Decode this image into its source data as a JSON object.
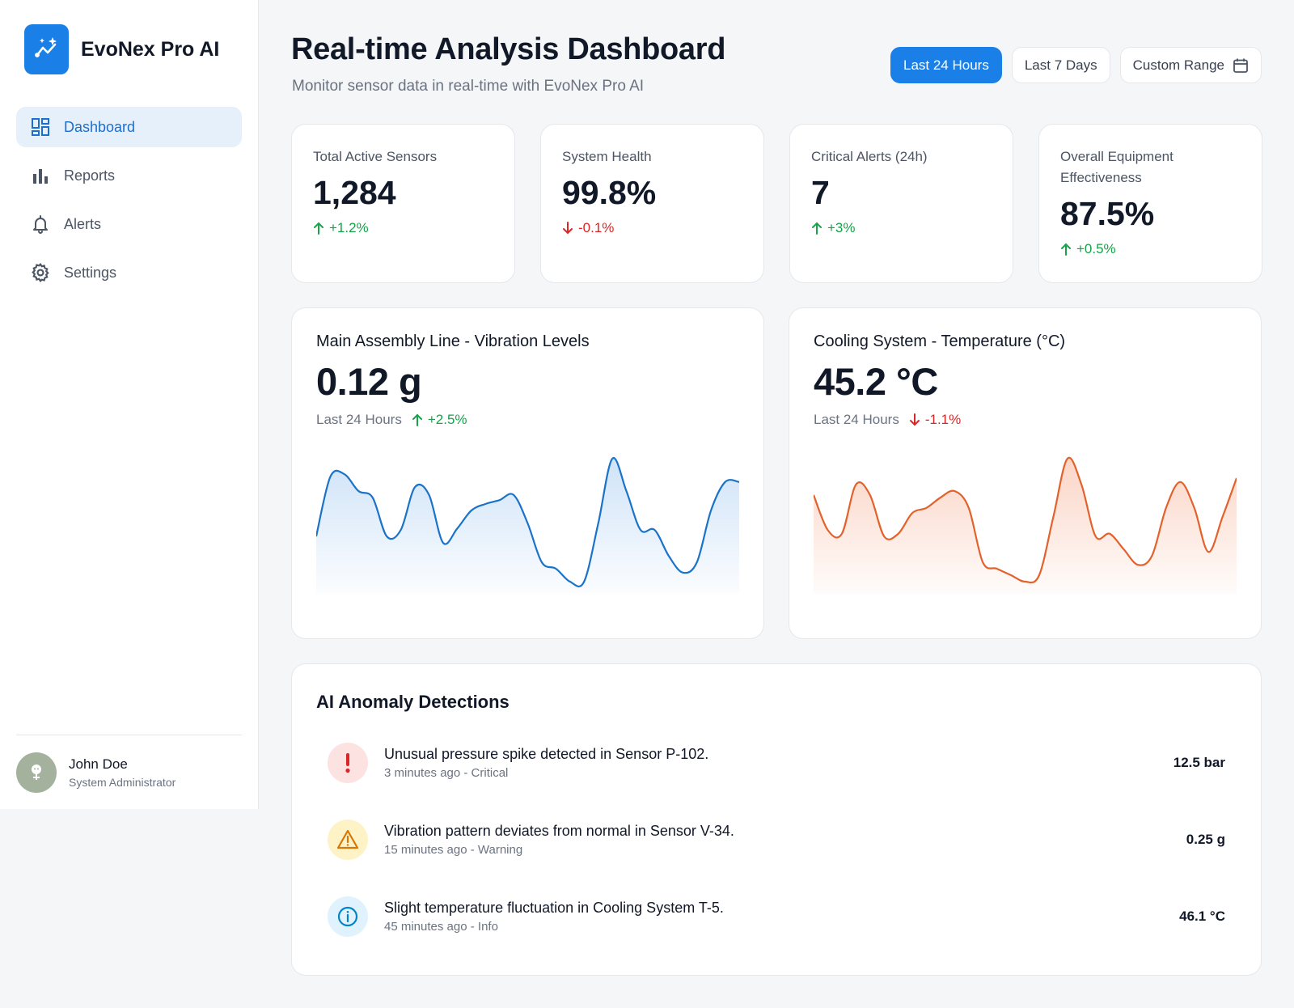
{
  "app": {
    "name": "EvoNex Pro AI",
    "icon": "sparkline-icon"
  },
  "sidebar": {
    "items": [
      {
        "label": "Dashboard",
        "icon": "dashboard-grid-icon",
        "active": true
      },
      {
        "label": "Reports",
        "icon": "bar-chart-icon",
        "active": false
      },
      {
        "label": "Alerts",
        "icon": "bell-icon",
        "active": false
      },
      {
        "label": "Settings",
        "icon": "gear-icon",
        "active": false
      }
    ],
    "user": {
      "name": "John Doe",
      "role": "System Administrator",
      "avatar": "user-avatar-icon"
    }
  },
  "header": {
    "title": "Real-time Analysis Dashboard",
    "subtitle": "Monitor sensor data in real-time with EvoNex Pro AI",
    "ranges": [
      {
        "label": "Last 24 Hours",
        "active": true
      },
      {
        "label": "Last 7 Days",
        "active": false
      },
      {
        "label": "Custom Range",
        "active": false,
        "icon": "calendar-icon"
      }
    ]
  },
  "kpis": [
    {
      "label": "Total Active Sensors",
      "value": "1,284",
      "delta": "+1.2%",
      "direction": "up"
    },
    {
      "label": "System Health",
      "value": "99.8%",
      "delta": "-0.1%",
      "direction": "down"
    },
    {
      "label": "Critical Alerts (24h)",
      "value": "7",
      "delta": "+3%",
      "direction": "up"
    },
    {
      "label": "Overall Equipment Effectiveness",
      "value": "87.5%",
      "delta": "+0.5%",
      "direction": "up"
    }
  ],
  "charts": [
    {
      "title": "Main Assembly Line - Vibration Levels",
      "value": "0.12 g",
      "period": "Last 24 Hours",
      "delta": "+2.5%",
      "direction": "up",
      "color": "#1a73c8",
      "fill": "#cfe3f8"
    },
    {
      "title": "Cooling System - Temperature (°C)",
      "value": "45.2 °C",
      "period": "Last 24 Hours",
      "delta": "-1.1%",
      "direction": "down",
      "color": "#e2622c",
      "fill": "#fbd5c6"
    }
  ],
  "chart_data": [
    {
      "type": "area",
      "title": "Main Assembly Line - Vibration Levels",
      "x": [
        0,
        1,
        2,
        3,
        4,
        5,
        6,
        7,
        8,
        9,
        10,
        11,
        12,
        13,
        14,
        15,
        16,
        17,
        18,
        19,
        20,
        21,
        22,
        23,
        24,
        25,
        26,
        27,
        28,
        29,
        30
      ],
      "values": [
        0.4,
        0.86,
        0.88,
        0.75,
        0.7,
        0.4,
        0.45,
        0.78,
        0.72,
        0.35,
        0.46,
        0.6,
        0.65,
        0.68,
        0.72,
        0.5,
        0.2,
        0.15,
        0.05,
        0.05,
        0.5,
        1.0,
        0.75,
        0.45,
        0.45,
        0.25,
        0.12,
        0.2,
        0.6,
        0.82,
        0.82
      ],
      "ylim": [
        0,
        1
      ],
      "grid": false
    },
    {
      "type": "area",
      "title": "Cooling System - Temperature (°C)",
      "x": [
        0,
        1,
        2,
        3,
        4,
        5,
        6,
        7,
        8,
        9,
        10,
        11,
        12,
        13,
        14,
        15,
        16,
        17,
        18,
        19,
        20,
        21,
        22,
        23,
        24,
        25,
        26,
        27,
        28,
        29,
        30
      ],
      "values": [
        0.72,
        0.45,
        0.42,
        0.8,
        0.72,
        0.4,
        0.42,
        0.58,
        0.62,
        0.7,
        0.75,
        0.62,
        0.2,
        0.15,
        0.1,
        0.05,
        0.1,
        0.55,
        1.0,
        0.8,
        0.4,
        0.42,
        0.3,
        0.18,
        0.25,
        0.62,
        0.82,
        0.62,
        0.28,
        0.55,
        0.85
      ],
      "ylim": [
        0,
        1
      ],
      "grid": false
    }
  ],
  "anomalies": {
    "title": "AI Anomaly Detections",
    "items": [
      {
        "message": "Unusual pressure spike detected in Sensor P-102.",
        "meta": "3 minutes ago - Critical",
        "value": "12.5 bar",
        "severity": "critical",
        "icon": "exclamation-icon",
        "color": "#dc2626"
      },
      {
        "message": "Vibration pattern deviates from normal in Sensor V-34.",
        "meta": "15 minutes ago - Warning",
        "value": "0.25 g",
        "severity": "warning",
        "icon": "warning-triangle-icon",
        "color": "#d97706"
      },
      {
        "message": "Slight temperature fluctuation in Cooling System T-5.",
        "meta": "45 minutes ago - Info",
        "value": "46.1 °C",
        "severity": "info",
        "icon": "info-circle-icon",
        "color": "#0284c7"
      }
    ]
  }
}
